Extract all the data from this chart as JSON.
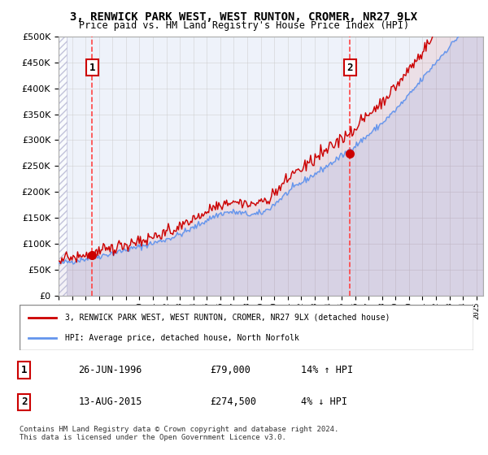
{
  "title": "3, RENWICK PARK WEST, WEST RUNTON, CROMER, NR27 9LX",
  "subtitle": "Price paid vs. HM Land Registry's House Price Index (HPI)",
  "xlabel": "",
  "ylabel": "",
  "ylim": [
    0,
    500000
  ],
  "yticks": [
    0,
    50000,
    100000,
    150000,
    200000,
    250000,
    300000,
    350000,
    400000,
    450000,
    500000
  ],
  "ytick_labels": [
    "£0",
    "£50K",
    "£100K",
    "£150K",
    "£200K",
    "£250K",
    "£300K",
    "£350K",
    "£400K",
    "£450K",
    "£500K"
  ],
  "xlim_start": 1994.0,
  "xlim_end": 2025.5,
  "sale1_year": 1996.487,
  "sale1_price": 79000,
  "sale1_label": "1",
  "sale2_year": 2015.617,
  "sale2_price": 274500,
  "sale2_label": "2",
  "legend_line1": "3, RENWICK PARK WEST, WEST RUNTON, CROMER, NR27 9LX (detached house)",
  "legend_line2": "HPI: Average price, detached house, North Norfolk",
  "table_row1": [
    "1",
    "26-JUN-1996",
    "£79,000",
    "14% ↑ HPI"
  ],
  "table_row2": [
    "2",
    "13-AUG-2015",
    "£274,500",
    "4% ↓ HPI"
  ],
  "footer": "Contains HM Land Registry data © Crown copyright and database right 2024.\nThis data is licensed under the Open Government Licence v3.0.",
  "hpi_color": "#6495ED",
  "sale_color": "#CC0000",
  "bg_hatch_color": "#E8EEF8",
  "grid_color": "#CCCCCC",
  "vline_color": "#FF4444",
  "box_border_color": "#CC0000",
  "plot_bg": "#EEF2FA"
}
